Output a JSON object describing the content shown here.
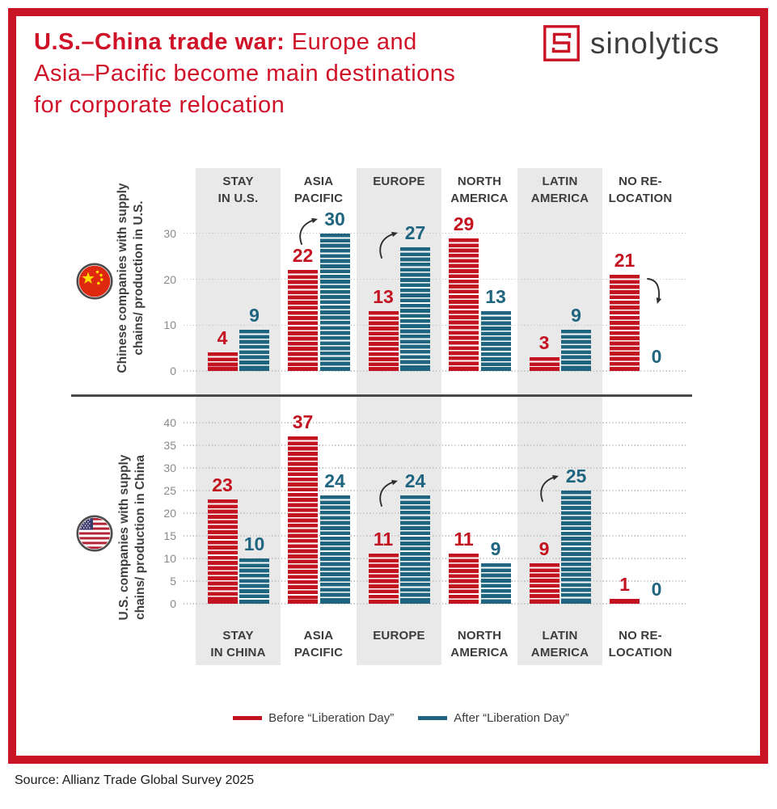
{
  "title": {
    "bold": "U.S.–China trade war:",
    "line1_rest": " Europe and",
    "line2": "Asia–Pacific become main destinations",
    "line3": "for corporate relocation"
  },
  "logo": {
    "text": "sinolytics"
  },
  "legend": {
    "before": "Before “Liberation Day”",
    "after": "After “Liberation Day”"
  },
  "source": "Source: Allianz Trade Global Survey 2025",
  "colors": {
    "before": "#c31320",
    "after": "#1f6580",
    "accent": "#c81425"
  },
  "chart_data": [
    {
      "type": "bar",
      "panel": "top",
      "ylabel": "Chinese companies with supply\nchains/ production in U.S.",
      "flag": "china",
      "categories": [
        "STAY\nIN U.S.",
        "ASIA\nPACIFIC",
        "EUROPE",
        "NORTH\nAMERICA",
        "LATIN\nAMERICA",
        "NO RE-\nLOCATION"
      ],
      "series": [
        {
          "name": "Before “Liberation Day”",
          "color": "#c31320",
          "values": [
            4,
            22,
            13,
            29,
            3,
            21
          ]
        },
        {
          "name": "After “Liberation Day”",
          "color": "#1f6580",
          "values": [
            9,
            30,
            27,
            13,
            9,
            0
          ]
        }
      ],
      "ylim": [
        0,
        30
      ],
      "yticks": [
        0,
        10,
        20,
        30
      ],
      "grid": "dotted",
      "arrows": [
        {
          "category": 1,
          "direction": "up"
        },
        {
          "category": 2,
          "direction": "up"
        },
        {
          "category": 5,
          "direction": "down"
        }
      ]
    },
    {
      "type": "bar",
      "panel": "bottom",
      "ylabel": "U.S. companies with supply\nchains/ production in China",
      "flag": "us",
      "categories": [
        "STAY\nIN CHINA",
        "ASIA\nPACIFIC",
        "EUROPE",
        "NORTH\nAMERICA",
        "LATIN\nAMERICA",
        "NO RE-\nLOCATION"
      ],
      "series": [
        {
          "name": "Before “Liberation Day”",
          "color": "#c31320",
          "values": [
            23,
            37,
            11,
            11,
            9,
            1
          ]
        },
        {
          "name": "After “Liberation Day”",
          "color": "#1f6580",
          "values": [
            10,
            24,
            24,
            9,
            25,
            0
          ]
        }
      ],
      "ylim": [
        0,
        40
      ],
      "yticks": [
        0,
        5,
        10,
        15,
        20,
        25,
        30,
        35,
        40
      ],
      "grid": "dotted",
      "arrows": [
        {
          "category": 2,
          "direction": "up"
        },
        {
          "category": 4,
          "direction": "up"
        }
      ]
    }
  ]
}
